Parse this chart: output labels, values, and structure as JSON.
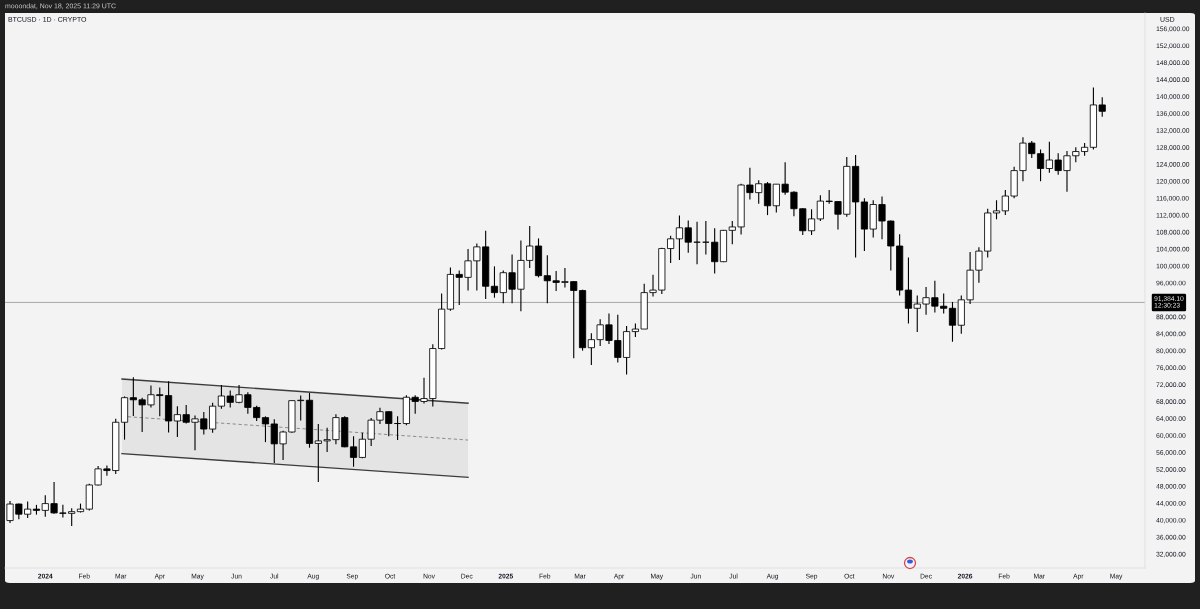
{
  "chart_data": {
    "type": "candlestick",
    "title": "BTCUSD · 1D · CRYPTO",
    "ylabel": "USD",
    "annotations": [
      "mooondat, Nov 18, 2025 11:29 UTC"
    ],
    "color": "#000000",
    "x": [
      "2023-12-04",
      "2023-12-11",
      "2023-12-18",
      "2023-12-25",
      "2024-01-01",
      "2024-01-08",
      "2024-01-15",
      "2024-01-22",
      "2024-01-29",
      "2024-02-05",
      "2024-02-12",
      "2024-02-19",
      "2024-02-26",
      "2024-03-04",
      "2024-03-11",
      "2024-03-18",
      "2024-03-25",
      "2024-04-01",
      "2024-04-08",
      "2024-04-15",
      "2024-04-22",
      "2024-04-29",
      "2024-05-06",
      "2024-05-13",
      "2024-05-20",
      "2024-05-27",
      "2024-06-03",
      "2024-06-10",
      "2024-06-17",
      "2024-06-24",
      "2024-07-01",
      "2024-07-08",
      "2024-07-15",
      "2024-07-22",
      "2024-07-29",
      "2024-08-05",
      "2024-08-12",
      "2024-08-19",
      "2024-08-26",
      "2024-09-02",
      "2024-09-09",
      "2024-09-16",
      "2024-09-23",
      "2024-09-30",
      "2024-10-07",
      "2024-10-14",
      "2024-10-21",
      "2024-10-28",
      "2024-11-04",
      "2024-11-11",
      "2024-11-18",
      "2024-11-25",
      "2024-12-02",
      "2024-12-09",
      "2024-12-16",
      "2024-12-23",
      "2024-12-30",
      "2025-01-06",
      "2025-01-13",
      "2025-01-20",
      "2025-01-27",
      "2025-02-03",
      "2025-02-10",
      "2025-02-17",
      "2025-02-24",
      "2025-03-03",
      "2025-03-10",
      "2025-03-17",
      "2025-03-24",
      "2025-03-31",
      "2025-04-07",
      "2025-04-14",
      "2025-04-21",
      "2025-04-28",
      "2025-05-05",
      "2025-05-12",
      "2025-05-19",
      "2025-05-26",
      "2025-06-02",
      "2025-06-09",
      "2025-06-16",
      "2025-06-23",
      "2025-06-30",
      "2025-07-07",
      "2025-07-14",
      "2025-07-21",
      "2025-07-28",
      "2025-08-04",
      "2025-08-11",
      "2025-08-18",
      "2025-08-25",
      "2025-09-01",
      "2025-09-08",
      "2025-09-15",
      "2025-09-22",
      "2025-09-29",
      "2025-10-06",
      "2025-10-13",
      "2025-10-20",
      "2025-10-27",
      "2025-11-03",
      "2025-11-10",
      "2025-11-17",
      "2025-11-24",
      "2025-12-01",
      "2025-12-08",
      "2025-12-15",
      "2025-12-22",
      "2025-12-29",
      "2026-01-05",
      "2026-01-12",
      "2026-01-19",
      "2026-01-26",
      "2026-02-02",
      "2026-02-09",
      "2026-02-16",
      "2026-02-23",
      "2026-03-02",
      "2026-03-09",
      "2026-03-16",
      "2026-03-23",
      "2026-03-30",
      "2026-04-06",
      "2026-04-13",
      "2026-04-20"
    ],
    "ohlc": [
      [
        39900,
        44500,
        39300,
        43800
      ],
      [
        43800,
        43900,
        40200,
        41400
      ],
      [
        41400,
        44400,
        40500,
        42600
      ],
      [
        42600,
        43600,
        41300,
        42300
      ],
      [
        42300,
        45900,
        40800,
        43900
      ],
      [
        43900,
        49000,
        41500,
        41700
      ],
      [
        41700,
        43600,
        40600,
        41600
      ],
      [
        41600,
        42800,
        38600,
        42000
      ],
      [
        42000,
        43900,
        41800,
        42600
      ],
      [
        42600,
        48600,
        42300,
        48300
      ],
      [
        48300,
        52800,
        48200,
        52100
      ],
      [
        52100,
        52900,
        50500,
        51700
      ],
      [
        51700,
        63900,
        50900,
        63100
      ],
      [
        63100,
        69200,
        59000,
        68900
      ],
      [
        68900,
        73700,
        64600,
        68400
      ],
      [
        68400,
        68900,
        60800,
        67200
      ],
      [
        67200,
        71800,
        66600,
        69600
      ],
      [
        69600,
        71300,
        64500,
        69400
      ],
      [
        69400,
        72800,
        60700,
        63400
      ],
      [
        63400,
        66900,
        59600,
        64900
      ],
      [
        64900,
        67200,
        62800,
        63100
      ],
      [
        63100,
        64700,
        56500,
        63900
      ],
      [
        63900,
        65500,
        60200,
        61500
      ],
      [
        61500,
        67700,
        60600,
        66900
      ],
      [
        66900,
        71900,
        66300,
        69300
      ],
      [
        69300,
        70600,
        66600,
        67800
      ],
      [
        67800,
        71900,
        67600,
        69600
      ],
      [
        69600,
        70200,
        65100,
        66600
      ],
      [
        66600,
        67000,
        63400,
        64200
      ],
      [
        64200,
        64500,
        58400,
        62700
      ],
      [
        62700,
        63800,
        53500,
        58000
      ],
      [
        58000,
        61100,
        54200,
        60800
      ],
      [
        60800,
        68300,
        60600,
        68200
      ],
      [
        68200,
        69400,
        63500,
        68300
      ],
      [
        68300,
        70000,
        57100,
        58100
      ],
      [
        58100,
        62700,
        49000,
        58700
      ],
      [
        58700,
        61800,
        56100,
        59000
      ],
      [
        59000,
        65000,
        57900,
        64200
      ],
      [
        64200,
        64500,
        57200,
        57300
      ],
      [
        57300,
        59800,
        52600,
        54800
      ],
      [
        54800,
        60600,
        54600,
        59100
      ],
      [
        59100,
        64100,
        57500,
        63600
      ],
      [
        63600,
        66500,
        62700,
        65600
      ],
      [
        65600,
        65700,
        59800,
        62800
      ],
      [
        62800,
        64500,
        58900,
        62800
      ],
      [
        62800,
        69500,
        62400,
        69000
      ],
      [
        69000,
        69500,
        65100,
        68000
      ],
      [
        68000,
        73600,
        67500,
        68700
      ],
      [
        68700,
        81500,
        66800,
        80500
      ],
      [
        80500,
        93500,
        80300,
        89800
      ],
      [
        89800,
        99600,
        89400,
        98000
      ],
      [
        98000,
        98900,
        90800,
        97300
      ],
      [
        97300,
        104000,
        94200,
        101200
      ],
      [
        101200,
        105300,
        94200,
        104500
      ],
      [
        104500,
        108300,
        92200,
        95200
      ],
      [
        95200,
        99900,
        92500,
        93700
      ],
      [
        93700,
        98900,
        91200,
        98400
      ],
      [
        98400,
        102700,
        91200,
        94500
      ],
      [
        94500,
        106000,
        89300,
        101300
      ],
      [
        101300,
        109400,
        99500,
        104700
      ],
      [
        104700,
        106500,
        97300,
        97700
      ],
      [
        97700,
        102500,
        91200,
        96500
      ],
      [
        96500,
        98800,
        94100,
        96100
      ],
      [
        96100,
        99500,
        94900,
        96300
      ],
      [
        96300,
        96400,
        78200,
        94200
      ],
      [
        94200,
        94400,
        80000,
        80700
      ],
      [
        80700,
        84100,
        76600,
        82600
      ],
      [
        82600,
        87400,
        81100,
        86100
      ],
      [
        86100,
        88800,
        81600,
        82400
      ],
      [
        82400,
        88500,
        77200,
        78400
      ],
      [
        78400,
        85800,
        74400,
        84500
      ],
      [
        84500,
        86400,
        83200,
        85100
      ],
      [
        85100,
        95800,
        85100,
        93700
      ],
      [
        93700,
        97900,
        92800,
        94300
      ],
      [
        94300,
        104300,
        93400,
        104100
      ],
      [
        104100,
        107100,
        100700,
        106400
      ],
      [
        106400,
        111900,
        101400,
        109000
      ],
      [
        109000,
        110700,
        103100,
        105600
      ],
      [
        105600,
        110400,
        100400,
        105600
      ],
      [
        105600,
        110600,
        102700,
        105600
      ],
      [
        105600,
        108900,
        98200,
        101000
      ],
      [
        101000,
        108500,
        100900,
        108400
      ],
      [
        108400,
        110600,
        105100,
        109200
      ],
      [
        109200,
        119400,
        107400,
        119100
      ],
      [
        119100,
        123200,
        115700,
        117300
      ],
      [
        117300,
        120200,
        114700,
        119400
      ],
      [
        119400,
        119800,
        112000,
        114200
      ],
      [
        114200,
        119300,
        112600,
        119300
      ],
      [
        119300,
        124500,
        116800,
        117400
      ],
      [
        117400,
        117600,
        111700,
        113500
      ],
      [
        113500,
        113600,
        107300,
        108300
      ],
      [
        108300,
        113400,
        107300,
        111100
      ],
      [
        111100,
        116700,
        110600,
        115300
      ],
      [
        115300,
        117900,
        114700,
        115200
      ],
      [
        115200,
        115300,
        108600,
        112200
      ],
      [
        112200,
        125700,
        111600,
        123500
      ],
      [
        123500,
        126200,
        102000,
        115100
      ],
      [
        115100,
        116000,
        103500,
        108700
      ],
      [
        108700,
        115500,
        106700,
        114500
      ],
      [
        114500,
        116400,
        106300,
        110600
      ],
      [
        110600,
        110700,
        98900,
        104700
      ],
      [
        104700,
        107500,
        93000,
        94300
      ],
      [
        94300,
        102000,
        86400,
        90000
      ],
      [
        90000,
        93000,
        84400,
        91000
      ],
      [
        91000,
        95000,
        88500,
        92500
      ],
      [
        92500,
        96500,
        89000,
        90500
      ],
      [
        90500,
        93500,
        88800,
        90000
      ],
      [
        90000,
        91500,
        82100,
        86000
      ],
      [
        86000,
        93000,
        84000,
        92000
      ],
      [
        92000,
        103300,
        91000,
        99000
      ],
      [
        99000,
        104400,
        96000,
        103500
      ],
      [
        103500,
        113500,
        102000,
        112500
      ],
      [
        112500,
        115500,
        111000,
        113000
      ],
      [
        113000,
        117900,
        112000,
        116500
      ],
      [
        116500,
        123400,
        116000,
        122500
      ],
      [
        122500,
        130400,
        120000,
        129000
      ],
      [
        129000,
        129500,
        125500,
        126500
      ],
      [
        126500,
        127500,
        120000,
        123000
      ],
      [
        123000,
        129300,
        122000,
        125000
      ],
      [
        125000,
        126600,
        121500,
        122500
      ],
      [
        122500,
        127100,
        117500,
        126000
      ],
      [
        126000,
        128000,
        124500,
        127000
      ],
      [
        127000,
        129000,
        126000,
        128000
      ],
      [
        128000,
        142100,
        127500,
        138000
      ],
      [
        138000,
        139800,
        135200,
        136500
      ]
    ],
    "series": [
      {
        "type": "line",
        "color": "#3c3c3c",
        "line_style": "solid",
        "x": [
          "2024-03-02",
          "2024-12-02"
        ],
        "values": [
          73300,
          67600
        ]
      },
      {
        "type": "line",
        "color": "#3c3c3c",
        "line_style": "solid",
        "x": [
          "2024-03-02",
          "2024-12-02"
        ],
        "values": [
          55700,
          50100
        ]
      },
      {
        "type": "line",
        "color": "#7a7a7a",
        "line_style": "dashed",
        "x": [
          "2024-03-02",
          "2024-12-02"
        ],
        "values": [
          64500,
          58900
        ],
        "lower": [
          55700,
          50100
        ],
        "upper": [
          73300,
          67600
        ]
      }
    ],
    "ref_lines": [
      {
        "axis": "y",
        "value": 91384.1,
        "label": "91,384.10\n12:30:23",
        "color": "#9a9a9a"
      }
    ],
    "xlim": [
      "2023-11-30",
      "2026-05-24"
    ],
    "xticks": [
      {
        "value": "2024-01-01",
        "label": "2024"
      },
      {
        "value": "2024-02-01",
        "label": "Feb"
      },
      {
        "value": "2024-03-01",
        "label": "Mar"
      },
      {
        "value": "2024-04-01",
        "label": "Apr"
      },
      {
        "value": "2024-05-01",
        "label": "May"
      },
      {
        "value": "2024-06-01",
        "label": "Jun"
      },
      {
        "value": "2024-07-01",
        "label": "Jul"
      },
      {
        "value": "2024-08-01",
        "label": "Aug"
      },
      {
        "value": "2024-09-01",
        "label": "Sep"
      },
      {
        "value": "2024-10-01",
        "label": "Oct"
      },
      {
        "value": "2024-11-01",
        "label": "Nov"
      },
      {
        "value": "2024-12-01",
        "label": "Dec"
      },
      {
        "value": "2025-01-01",
        "label": "2025"
      },
      {
        "value": "2025-02-01",
        "label": "Feb"
      },
      {
        "value": "2025-03-01",
        "label": "Mar"
      },
      {
        "value": "2025-04-01",
        "label": "Apr"
      },
      {
        "value": "2025-05-01",
        "label": "May"
      },
      {
        "value": "2025-06-01",
        "label": "Jun"
      },
      {
        "value": "2025-07-01",
        "label": "Jul"
      },
      {
        "value": "2025-08-01",
        "label": "Aug"
      },
      {
        "value": "2025-09-01",
        "label": "Sep"
      },
      {
        "value": "2025-10-01",
        "label": "Oct"
      },
      {
        "value": "2025-11-01",
        "label": "Nov"
      },
      {
        "value": "2025-12-01",
        "label": "Dec"
      },
      {
        "value": "2026-01-01",
        "label": "2026"
      },
      {
        "value": "2026-02-01",
        "label": "Feb"
      },
      {
        "value": "2026-03-01",
        "label": "Mar"
      },
      {
        "value": "2026-04-01",
        "label": "Apr"
      },
      {
        "value": "2026-05-01",
        "label": "May"
      }
    ],
    "ylim": [
      28700,
      159700
    ],
    "yticks": [
      {
        "value": 32000,
        "label": "32,000.00"
      },
      {
        "value": 36000,
        "label": "36,000.00"
      },
      {
        "value": 40000,
        "label": "40,000.00"
      },
      {
        "value": 44000,
        "label": "44,000.00"
      },
      {
        "value": 48000,
        "label": "48,000.00"
      },
      {
        "value": 52000,
        "label": "52,000.00"
      },
      {
        "value": 56000,
        "label": "56,000.00"
      },
      {
        "value": 60000,
        "label": "60,000.00"
      },
      {
        "value": 64000,
        "label": "64,000.00"
      },
      {
        "value": 68000,
        "label": "68,000.00"
      },
      {
        "value": 72000,
        "label": "72,000.00"
      },
      {
        "value": 76000,
        "label": "76,000.00"
      },
      {
        "value": 80000,
        "label": "80,000.00"
      },
      {
        "value": 84000,
        "label": "84,000.00"
      },
      {
        "value": 88000,
        "label": "88,000.00"
      },
      {
        "value": 96000,
        "label": "96,000.00"
      },
      {
        "value": 100000,
        "label": "100,000.00"
      },
      {
        "value": 104000,
        "label": "104,000.00"
      },
      {
        "value": 108000,
        "label": "108,000.00"
      },
      {
        "value": 112000,
        "label": "112,000.00"
      },
      {
        "value": 116000,
        "label": "116,000.00"
      },
      {
        "value": 120000,
        "label": "120,000.00"
      },
      {
        "value": 124000,
        "label": "124,000.00"
      },
      {
        "value": 128000,
        "label": "128,000.00"
      },
      {
        "value": 132000,
        "label": "132,000.00"
      },
      {
        "value": 136000,
        "label": "136,000.00"
      },
      {
        "value": 140000,
        "label": "140,000.00"
      },
      {
        "value": 144000,
        "label": "144,000.00"
      },
      {
        "value": 148000,
        "label": "148,000.00"
      },
      {
        "value": 152000,
        "label": "152,000.00"
      },
      {
        "value": 156000,
        "label": "156,000.00"
      }
    ],
    "grid": false
  }
}
